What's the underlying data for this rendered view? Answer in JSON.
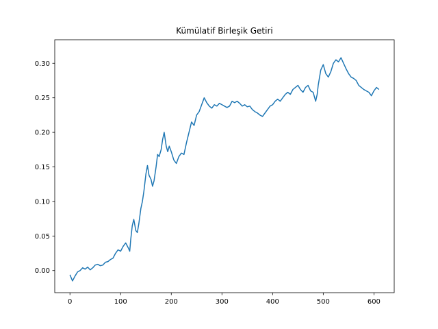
{
  "chart_data": {
    "type": "line",
    "title": "Kümülatif Birleşik Getiri",
    "xlabel": "",
    "ylabel": "",
    "xlim": [
      -30,
      640
    ],
    "ylim": [
      -0.032,
      0.334
    ],
    "grid": false,
    "x_ticks": [
      0,
      100,
      200,
      300,
      400,
      500,
      600
    ],
    "x_tick_labels": [
      "0",
      "100",
      "200",
      "300",
      "400",
      "500",
      "600"
    ],
    "y_ticks": [
      0.0,
      0.05,
      0.1,
      0.15,
      0.2,
      0.25,
      0.3
    ],
    "y_tick_labels": [
      "0.00",
      "0.05",
      "0.10",
      "0.15",
      "0.20",
      "0.25",
      "0.30"
    ],
    "series": [
      {
        "color": "#1f77b4",
        "x": [
          0,
          5,
          10,
          15,
          20,
          25,
          30,
          35,
          40,
          45,
          50,
          55,
          60,
          65,
          70,
          75,
          80,
          85,
          90,
          95,
          100,
          105,
          110,
          115,
          118,
          120,
          123,
          126,
          130,
          133,
          136,
          140,
          143,
          146,
          150,
          153,
          156,
          160,
          163,
          166,
          170,
          173,
          176,
          180,
          183,
          186,
          190,
          193,
          196,
          200,
          205,
          210,
          215,
          220,
          225,
          230,
          235,
          240,
          245,
          250,
          255,
          260,
          265,
          270,
          275,
          280,
          285,
          290,
          295,
          300,
          305,
          310,
          315,
          320,
          325,
          330,
          335,
          340,
          345,
          350,
          355,
          360,
          365,
          370,
          375,
          380,
          385,
          390,
          395,
          400,
          405,
          410,
          415,
          420,
          425,
          430,
          435,
          440,
          445,
          450,
          455,
          460,
          465,
          470,
          475,
          480,
          485,
          488,
          490,
          495,
          500,
          505,
          510,
          515,
          520,
          525,
          530,
          535,
          540,
          545,
          550,
          555,
          560,
          565,
          570,
          575,
          580,
          585,
          590,
          595,
          600,
          605,
          610
        ],
        "values": [
          -0.006,
          -0.015,
          -0.008,
          -0.002,
          0.0,
          0.004,
          0.002,
          0.005,
          0.001,
          0.004,
          0.008,
          0.009,
          0.007,
          0.008,
          0.012,
          0.013,
          0.016,
          0.018,
          0.025,
          0.03,
          0.028,
          0.035,
          0.04,
          0.033,
          0.028,
          0.045,
          0.065,
          0.074,
          0.058,
          0.055,
          0.068,
          0.09,
          0.1,
          0.115,
          0.14,
          0.152,
          0.138,
          0.132,
          0.122,
          0.13,
          0.15,
          0.168,
          0.165,
          0.175,
          0.19,
          0.2,
          0.18,
          0.172,
          0.18,
          0.172,
          0.16,
          0.155,
          0.165,
          0.17,
          0.168,
          0.185,
          0.2,
          0.215,
          0.21,
          0.225,
          0.23,
          0.24,
          0.25,
          0.243,
          0.238,
          0.235,
          0.24,
          0.238,
          0.242,
          0.24,
          0.238,
          0.236,
          0.238,
          0.245,
          0.243,
          0.245,
          0.242,
          0.238,
          0.24,
          0.237,
          0.238,
          0.233,
          0.23,
          0.228,
          0.225,
          0.223,
          0.228,
          0.233,
          0.238,
          0.24,
          0.245,
          0.248,
          0.245,
          0.25,
          0.255,
          0.258,
          0.255,
          0.262,
          0.265,
          0.268,
          0.262,
          0.258,
          0.265,
          0.268,
          0.26,
          0.258,
          0.245,
          0.255,
          0.268,
          0.29,
          0.298,
          0.285,
          0.28,
          0.288,
          0.3,
          0.305,
          0.302,
          0.308,
          0.3,
          0.292,
          0.285,
          0.28,
          0.278,
          0.275,
          0.268,
          0.265,
          0.262,
          0.26,
          0.258,
          0.253,
          0.26,
          0.265,
          0.262
        ]
      }
    ]
  }
}
